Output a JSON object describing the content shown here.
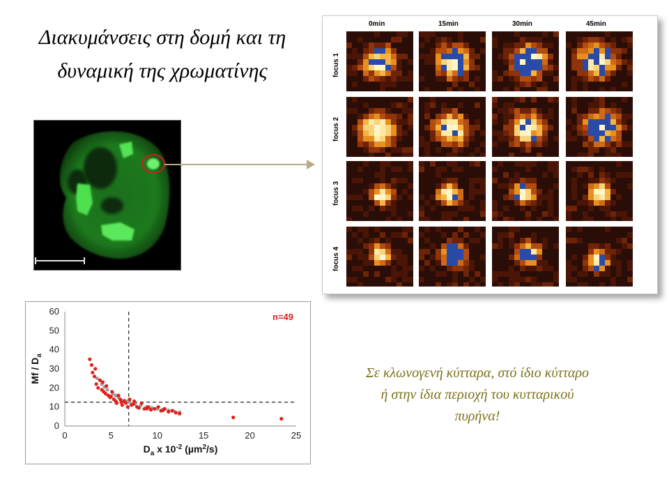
{
  "title": "Διακυμάνσεις στη δομή και τη δυναμική της χρωματίνης",
  "note": "Σε κλωνογενή κύτταρα, στό ίδιο κύτταρο ή στην ίδια περιοχή του κυτταρικού πυρήνα!",
  "microscopy": {
    "image": "green-fluorescent-nucleus",
    "highlight_color": "#cc1f1f"
  },
  "timecourse": {
    "columns": [
      "0min",
      "15min",
      "30min",
      "45min"
    ],
    "rows": [
      "focus 1",
      "focus 2",
      "focus 3",
      "focus 4"
    ],
    "colors": {
      "hot": "#fff6c8",
      "mid": "#e8901f",
      "cold": "#3a0e05",
      "saturated": "#2a4aa8"
    }
  },
  "chart_data": {
    "type": "scatter",
    "xlabel": "D",
    "xlabel_sub": "a",
    "xlabel_rest": " x 10",
    "xlabel_sup": "-2",
    "xlabel_unit": " (µm",
    "xlabel_unit_sup": "2",
    "xlabel_unit_end": "/s)",
    "ylabel": "Mf / D",
    "ylabel_sub": "a",
    "xlim": [
      0,
      25
    ],
    "ylim": [
      0,
      60
    ],
    "xticks": [
      "0",
      "5",
      "10",
      "15",
      "20",
      "25"
    ],
    "yticks": [
      "0",
      "10",
      "20",
      "30",
      "40",
      "50",
      "60"
    ],
    "annotation": "n=49",
    "vline_x": 6.9,
    "hline_y": 12.5,
    "series": [
      {
        "color": "#e0201b",
        "points": [
          [
            2.7,
            35
          ],
          [
            2.9,
            32
          ],
          [
            3.0,
            28
          ],
          [
            3.2,
            26
          ],
          [
            3.4,
            22
          ],
          [
            3.6,
            20
          ],
          [
            3.8,
            24
          ],
          [
            4.0,
            19
          ],
          [
            4.2,
            18
          ],
          [
            4.4,
            17
          ],
          [
            4.5,
            21
          ],
          [
            4.7,
            16
          ],
          [
            4.9,
            15
          ],
          [
            5.1,
            18
          ],
          [
            5.3,
            14
          ],
          [
            5.5,
            13
          ],
          [
            5.6,
            12
          ],
          [
            5.8,
            16
          ],
          [
            6.0,
            14
          ],
          [
            6.2,
            11
          ],
          [
            6.4,
            13
          ],
          [
            6.6,
            12
          ],
          [
            6.8,
            10
          ],
          [
            7.0,
            14
          ],
          [
            7.2,
            11
          ],
          [
            7.5,
            13
          ],
          [
            7.8,
            10
          ],
          [
            8.0,
            9.5
          ],
          [
            8.3,
            12
          ],
          [
            8.6,
            9
          ],
          [
            9.0,
            10
          ],
          [
            9.3,
            8.5
          ],
          [
            9.7,
            9
          ],
          [
            10.1,
            10
          ],
          [
            10.4,
            8
          ],
          [
            10.8,
            9
          ],
          [
            11.2,
            7.5
          ],
          [
            11.6,
            8
          ],
          [
            12.0,
            7
          ],
          [
            12.4,
            6.5
          ],
          [
            18.2,
            4.5
          ],
          [
            23.4,
            3.8
          ],
          [
            4.1,
            23
          ],
          [
            5.0,
            15.5
          ],
          [
            6.1,
            12.5
          ],
          [
            7.4,
            11.5
          ],
          [
            8.9,
            9.2
          ],
          [
            10.6,
            8.2
          ],
          [
            3.3,
            30
          ]
        ]
      },
      {
        "color": "#9e9e9e",
        "points": [
          [
            3.5,
            25
          ],
          [
            4.0,
            22
          ],
          [
            4.6,
            19
          ],
          [
            5.2,
            17
          ],
          [
            5.8,
            15
          ],
          [
            6.4,
            13.5
          ],
          [
            7.0,
            12.5
          ],
          [
            7.6,
            11.5
          ],
          [
            8.2,
            10.8
          ],
          [
            8.8,
            10
          ],
          [
            9.4,
            9.5
          ],
          [
            10.0,
            9
          ],
          [
            10.6,
            8.6
          ],
          [
            11.2,
            8.2
          ],
          [
            11.8,
            7.8
          ],
          [
            12.4,
            7.2
          ],
          [
            4.3,
            20.5
          ],
          [
            5.5,
            16
          ],
          [
            6.7,
            13
          ],
          [
            9.1,
            9.8
          ]
        ]
      }
    ]
  }
}
